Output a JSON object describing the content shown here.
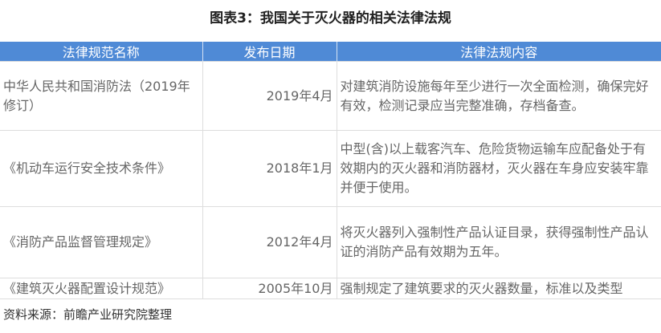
{
  "title": "图表3：我国关于灭火器的相关法律法规",
  "table": {
    "headers": [
      "法律规范名称",
      "发布日期",
      "法律法规内容"
    ],
    "rows": [
      {
        "name": "中华人民共和国消防法（2019年修订）",
        "date": "2019年4月",
        "content": "对建筑消防设施每年至少进行一次全面检测，确保完好有效，检测记录应当完整准确，存档备查。"
      },
      {
        "name": "《机动车运行安全技术条件》",
        "date": "2018年1月",
        "content": "中型(含)以上载客汽车、危险货物运输车应配备处于有效期内的灭火器和消防器材，灭火器在车身应安装牢靠并便于使用。"
      },
      {
        "name": "《消防产品监督管理规定》",
        "date": "2012年4月",
        "content": "将灭火器列入强制性产品认证目录，获得强制性产品认证的消防产品有效期为五年。"
      },
      {
        "name": "《建筑灭火器配置设计规范》",
        "date": "2005年10月",
        "content": "强制规定了建筑要求的灭火器数量，标准以及类型"
      }
    ]
  },
  "source": "资料来源：前瞻产业研究院整理",
  "colors": {
    "header": "#4f8ad6"
  }
}
